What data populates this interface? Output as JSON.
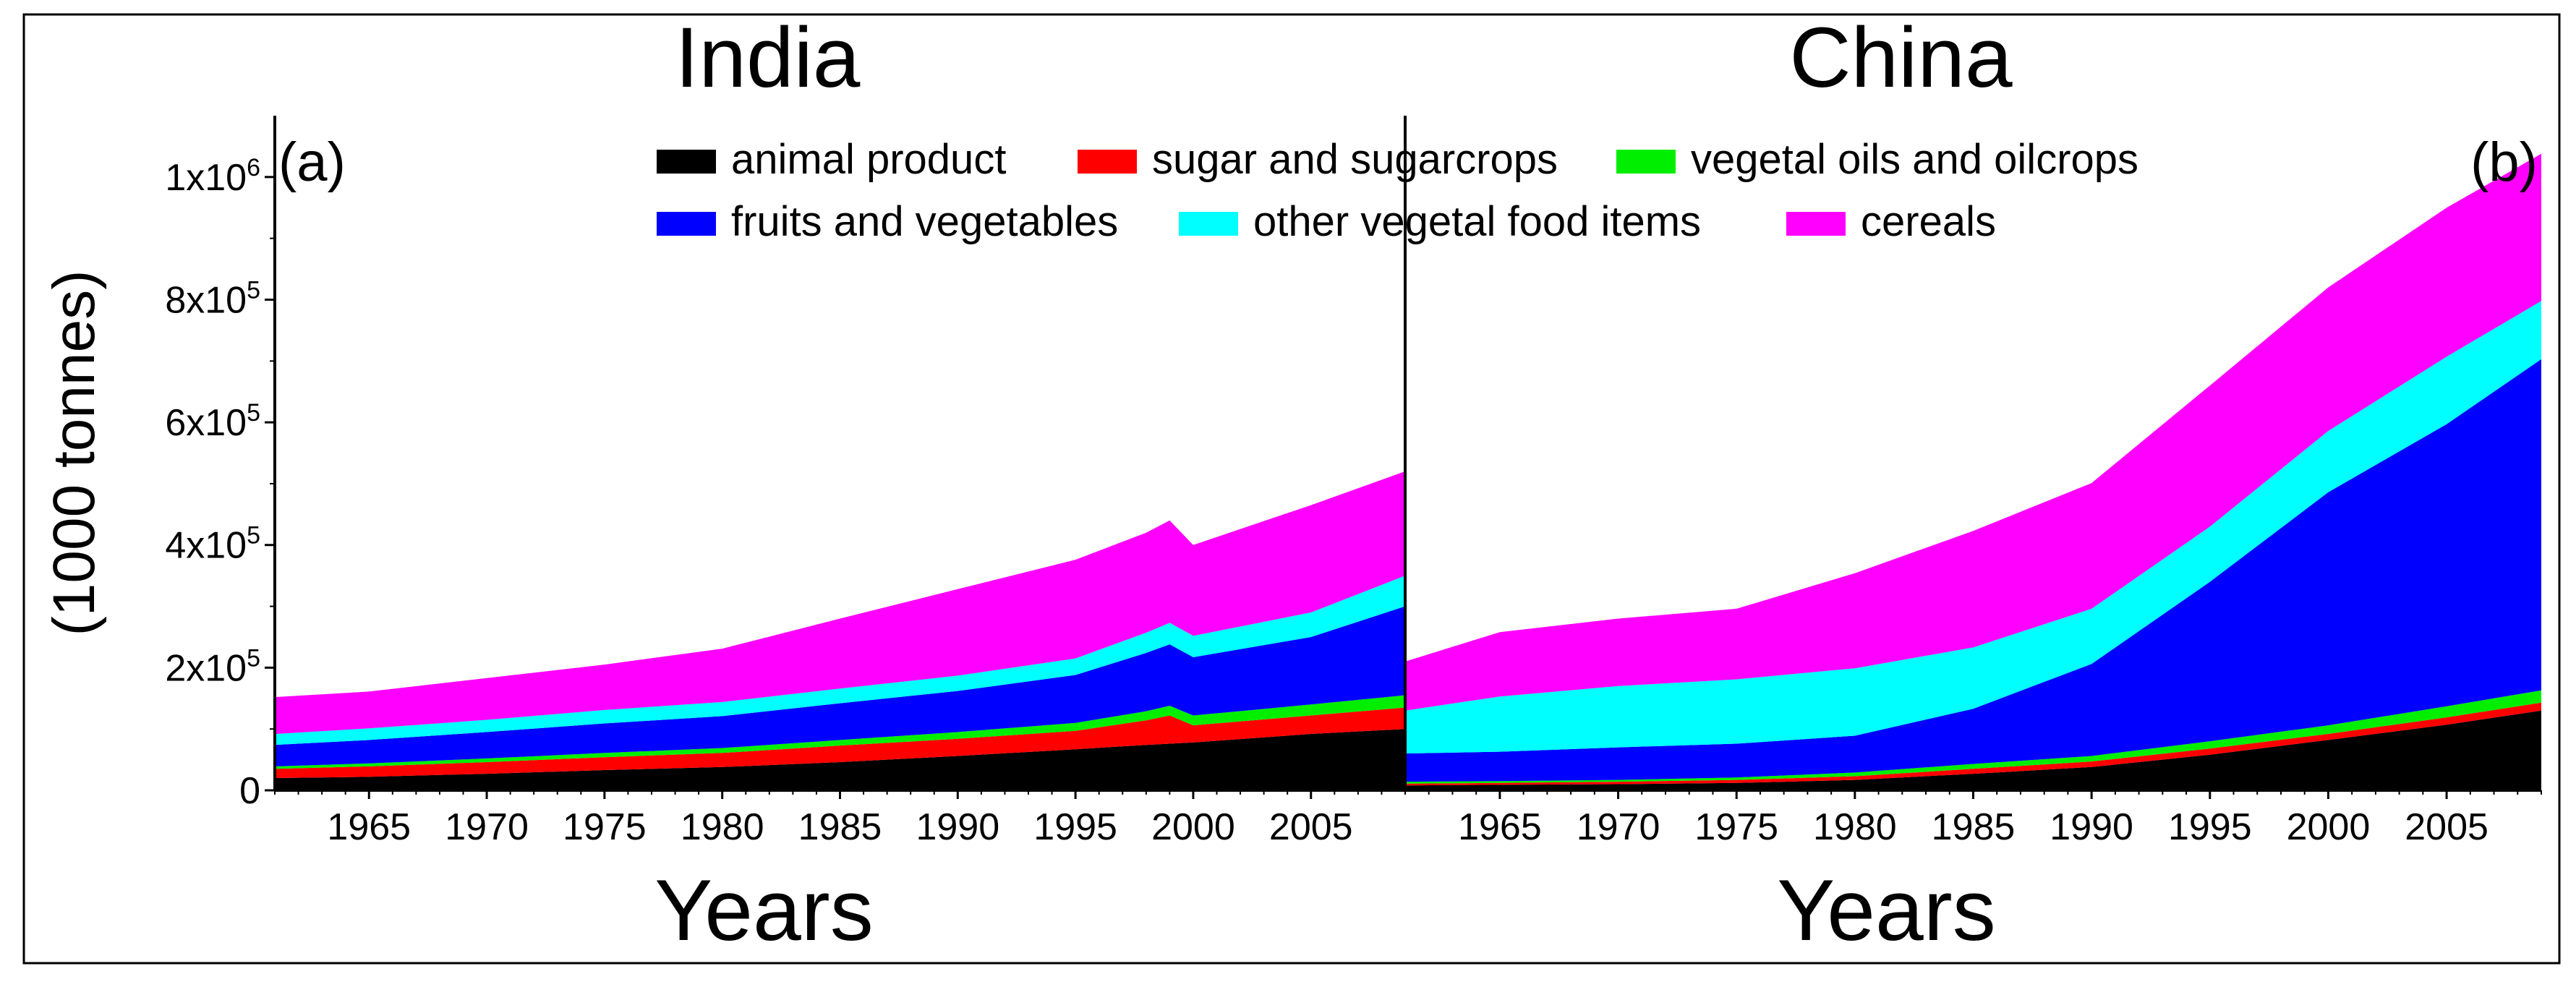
{
  "chart_data": [
    {
      "panel": "(a)",
      "title": "India",
      "type": "area",
      "stacked": true,
      "xlabel": "Years",
      "ylabel": "(1000 tonnes)",
      "ylim": [
        0,
        1100000
      ],
      "xlim": [
        1961,
        2009
      ],
      "xticks": [
        1965,
        1970,
        1975,
        1980,
        1985,
        1990,
        1995,
        2000,
        2005
      ],
      "yticks": [
        {
          "value": 0,
          "mantissa": "0",
          "exp": ""
        },
        {
          "value": 200000,
          "mantissa": "2x10",
          "exp": "5"
        },
        {
          "value": 400000,
          "mantissa": "4x10",
          "exp": "5"
        },
        {
          "value": 600000,
          "mantissa": "6x10",
          "exp": "5"
        },
        {
          "value": 800000,
          "mantissa": "8x10",
          "exp": "5"
        },
        {
          "value": 1000000,
          "mantissa": "1x10",
          "exp": "6"
        }
      ],
      "legend": "top",
      "x": [
        1961,
        1965,
        1970,
        1975,
        1980,
        1985,
        1990,
        1995,
        1998,
        1999,
        2000,
        2005,
        2009
      ],
      "series": [
        {
          "name": "animal product",
          "color": "#000000",
          "values": [
            20000,
            22000,
            27000,
            33000,
            38000,
            46000,
            56000,
            67000,
            74000,
            76000,
            78000,
            92000,
            100000
          ]
        },
        {
          "name": "sugar and sugarcrops",
          "color": "#ff0000",
          "values": [
            15000,
            17000,
            19000,
            21000,
            23000,
            27000,
            28000,
            30000,
            40000,
            46000,
            28000,
            30000,
            35000
          ]
        },
        {
          "name": "vegetal oils and oilcrops",
          "color": "#00ee00",
          "values": [
            4000,
            5000,
            6000,
            7000,
            8000,
            9000,
            11000,
            13000,
            15000,
            16000,
            16000,
            18000,
            20000
          ]
        },
        {
          "name": "fruits and vegetables",
          "color": "#0000ff",
          "values": [
            35000,
            38000,
            43000,
            48000,
            52000,
            60000,
            67000,
            78000,
            95000,
            100000,
            95000,
            110000,
            145000
          ]
        },
        {
          "name": "other vegetal food items",
          "color": "#00ffff",
          "values": [
            18000,
            19000,
            20000,
            22000,
            23000,
            24000,
            25000,
            27000,
            33000,
            35000,
            35000,
            40000,
            50000
          ]
        },
        {
          "name": "cereals",
          "color": "#ff00ff",
          "values": [
            60000,
            60000,
            68000,
            74000,
            87000,
            114000,
            141000,
            161000,
            163000,
            167000,
            148000,
            175000,
            170000
          ]
        }
      ]
    },
    {
      "panel": "(b)",
      "title": "China",
      "type": "area",
      "stacked": true,
      "xlabel": "Years",
      "ylabel": "",
      "ylim": [
        0,
        1100000
      ],
      "xlim": [
        1961,
        2009
      ],
      "xticks": [
        1965,
        1970,
        1975,
        1980,
        1985,
        1990,
        1995,
        2000,
        2005
      ],
      "x": [
        1961,
        1965,
        1970,
        1975,
        1980,
        1985,
        1990,
        1995,
        2000,
        2005,
        2009
      ],
      "series": [
        {
          "name": "animal product",
          "color": "#000000",
          "values": [
            8000,
            9000,
            10000,
            12000,
            17000,
            27000,
            38000,
            58000,
            82000,
            107000,
            130000
          ]
        },
        {
          "name": "sugar and sugarcrops",
          "color": "#ff0000",
          "values": [
            3000,
            3000,
            4000,
            5000,
            6000,
            8000,
            9000,
            10000,
            10000,
            12000,
            13000
          ]
        },
        {
          "name": "vegetal oils and oilcrops",
          "color": "#00ee00",
          "values": [
            3000,
            3000,
            3000,
            4000,
            6000,
            8000,
            9000,
            12000,
            14000,
            18000,
            20000
          ]
        },
        {
          "name": "fruits and vegetables",
          "color": "#0000ff",
          "values": [
            46000,
            48000,
            53000,
            55000,
            60000,
            90000,
            150000,
            260000,
            380000,
            460000,
            540000
          ]
        },
        {
          "name": "other vegetal food items",
          "color": "#00ffff",
          "values": [
            70000,
            90000,
            100000,
            105000,
            110000,
            100000,
            90000,
            90000,
            100000,
            110000,
            95000
          ]
        },
        {
          "name": "cereals",
          "color": "#ff00ff",
          "values": [
            80000,
            105000,
            110000,
            115000,
            155000,
            190000,
            205000,
            230000,
            234000,
            243000,
            240000
          ]
        }
      ]
    }
  ]
}
